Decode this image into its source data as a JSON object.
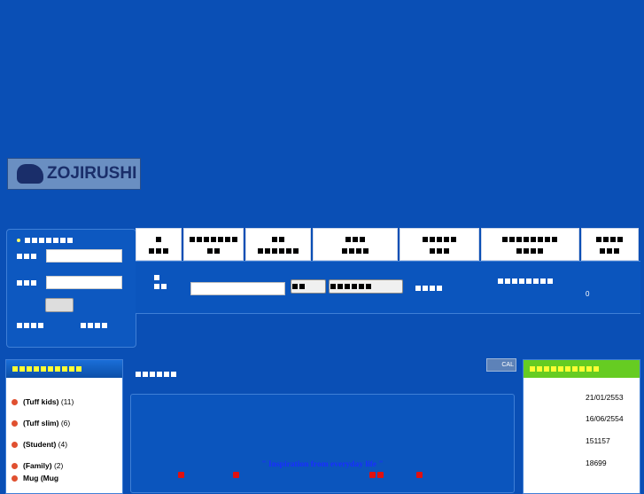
{
  "logo": {
    "text": "ZOJIRUSHI"
  },
  "categories": {
    "items": [
      {
        "label": "(Tuff kids)",
        "count": "(11)"
      },
      {
        "label": "(Tuff slim)",
        "count": "(6)"
      },
      {
        "label": "(Student)",
        "count": "(4)"
      },
      {
        "label": "(Family)",
        "count": "(2)"
      },
      {
        "label": "Mug (Mug",
        "count": ""
      }
    ]
  },
  "main": {
    "slogan": "\" Inspiration from everyday life \""
  },
  "calendar": {
    "label": "CAL"
  },
  "stats": {
    "values": [
      "21/01/2553",
      "16/06/2554",
      "151157",
      "18699"
    ]
  },
  "search": {
    "result_count": "0"
  },
  "colors": {
    "background": "#0a4fb5",
    "stats_header": "#66cc22",
    "slogan": "#1a2eff"
  }
}
